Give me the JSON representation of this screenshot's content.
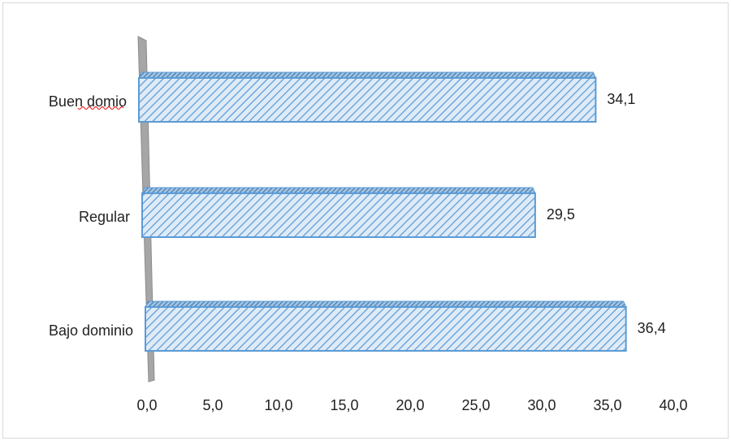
{
  "chart_data": {
    "type": "bar",
    "orientation": "horizontal",
    "categories": [
      "Buen domio",
      "Regular",
      "Bajo dominio"
    ],
    "values": [
      34.1,
      29.5,
      36.4
    ],
    "value_labels": [
      "34,1",
      "29,5",
      "36,4"
    ],
    "color": "#5b9bd5",
    "xlim": [
      0,
      40
    ],
    "xticks": [
      {
        "value": 0,
        "label": "0,0"
      },
      {
        "value": 5,
        "label": "5,0"
      },
      {
        "value": 10,
        "label": "10,0"
      },
      {
        "value": 15,
        "label": "15,0"
      },
      {
        "value": 20,
        "label": "20,0"
      },
      {
        "value": 25,
        "label": "25,0"
      },
      {
        "value": 30,
        "label": "30,0"
      },
      {
        "value": 35,
        "label": "35,0"
      },
      {
        "value": 40,
        "label": "40,0"
      }
    ]
  }
}
